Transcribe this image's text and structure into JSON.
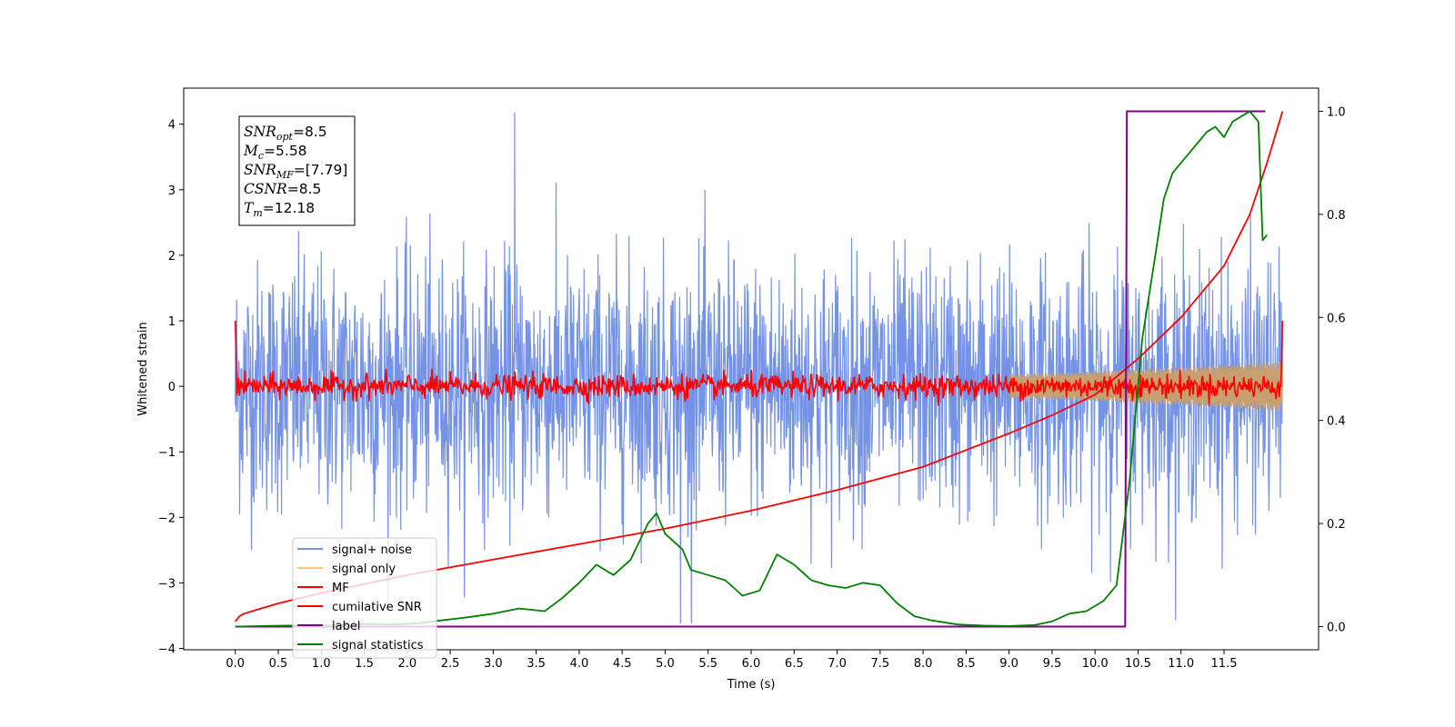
{
  "chart_data": {
    "type": "line",
    "xlabel": "Time (s)",
    "ylabel": "Whitened strain",
    "y2label": "",
    "xlim": [
      -0.6,
      12.6
    ],
    "ylim": [
      -4.02,
      4.55
    ],
    "y2lim": [
      -0.045,
      1.045
    ],
    "x_ticks": [
      0.0,
      0.5,
      1.0,
      1.5,
      2.0,
      2.5,
      3.0,
      3.5,
      4.0,
      4.5,
      5.0,
      5.5,
      6.0,
      6.5,
      7.0,
      7.5,
      8.0,
      8.5,
      9.0,
      9.5,
      10.0,
      10.5,
      11.0,
      11.5
    ],
    "x_tick_labels": [
      "0.0",
      "0.5",
      "1.0",
      "1.5",
      "2.0",
      "2.5",
      "3.0",
      "3.5",
      "4.0",
      "4.5",
      "5.0",
      "5.5",
      "6.0",
      "6.5",
      "7.0",
      "7.5",
      "8.0",
      "8.5",
      "9.0",
      "9.5",
      "10.0",
      "10.5",
      "11.0",
      "11.5"
    ],
    "y_ticks": [
      -4,
      -3,
      -2,
      -1,
      0,
      1,
      2,
      3,
      4
    ],
    "y_tick_labels": [
      "−4",
      "−3",
      "−2",
      "−1",
      "0",
      "1",
      "2",
      "3",
      "4"
    ],
    "y2_ticks": [
      0.0,
      0.2,
      0.4,
      0.6,
      0.8,
      1.0
    ],
    "y2_tick_labels": [
      "0.0",
      "0.2",
      "0.4",
      "0.6",
      "0.8",
      "1.0"
    ],
    "legend": {
      "location": "lower-left",
      "entries": [
        {
          "label": "signal+ noise",
          "color": "#7593e6"
        },
        {
          "label": "signal only",
          "color": "#ffc66b"
        },
        {
          "label": "MF",
          "color": "#ff0000"
        },
        {
          "label": "cumilative SNR",
          "color": "#ff0000"
        },
        {
          "label": "label",
          "color": "#800080"
        },
        {
          "label": "signal statistics",
          "color": "#008000"
        }
      ]
    },
    "info_box": [
      {
        "base": "SNR",
        "sub": "opt",
        "value": "=8.5"
      },
      {
        "base": "M",
        "sub": "c",
        "value": "=5.58"
      },
      {
        "base": "SNR",
        "sub": "MF",
        "value": "=[7.79]"
      },
      {
        "base": "CSNR",
        "sub": "",
        "value": "=8.5"
      },
      {
        "base": "T",
        "sub": "m",
        "value": "=12.18"
      }
    ],
    "series": [
      {
        "name": "signal+ noise",
        "axis": "left",
        "color": "#7593e6",
        "x_range": [
          0.0,
          12.18
        ],
        "typical_band": [
          -1.6,
          1.6
        ],
        "max_spike": 4.18,
        "min_spike": -3.62
      },
      {
        "name": "signal only",
        "axis": "left",
        "color": "#c8a070",
        "x_range": [
          0.0,
          12.18
        ],
        "envelope_start": 0.04,
        "envelope_end": 0.38,
        "visible_from": 9.0
      },
      {
        "name": "MF",
        "axis": "left",
        "color": "#ff0000",
        "x_range": [
          0.0,
          12.18
        ],
        "typical_band": [
          -0.2,
          0.2
        ],
        "start_value": 1.0,
        "end_value": 1.0
      },
      {
        "name": "cumilative SNR",
        "axis": "right",
        "color": "#ff0000",
        "x": [
          0.0,
          0.05,
          0.1,
          0.3,
          0.5,
          1.0,
          2.0,
          3.0,
          4.0,
          5.0,
          6.0,
          7.0,
          8.0,
          9.0,
          9.5,
          10.0,
          10.5,
          11.0,
          11.5,
          11.8,
          12.0,
          12.18
        ],
        "values": [
          0.01,
          0.02,
          0.025,
          0.035,
          0.045,
          0.065,
          0.1,
          0.13,
          0.16,
          0.19,
          0.225,
          0.265,
          0.31,
          0.375,
          0.41,
          0.45,
          0.52,
          0.6,
          0.7,
          0.8,
          0.9,
          1.0
        ]
      },
      {
        "name": "label",
        "axis": "right",
        "color": "#800080",
        "x": [
          0.0,
          10.35,
          10.37,
          11.98
        ],
        "values": [
          0.0,
          0.0,
          1.0,
          1.0
        ]
      },
      {
        "name": "signal statistics",
        "axis": "right",
        "color": "#008000",
        "x": [
          0.0,
          0.3,
          0.6,
          0.9,
          1.2,
          1.5,
          1.8,
          2.1,
          2.4,
          2.7,
          3.0,
          3.3,
          3.6,
          3.8,
          4.0,
          4.2,
          4.4,
          4.6,
          4.8,
          4.9,
          5.0,
          5.2,
          5.3,
          5.5,
          5.7,
          5.9,
          6.1,
          6.3,
          6.5,
          6.7,
          6.9,
          7.1,
          7.3,
          7.5,
          7.7,
          7.9,
          8.1,
          8.4,
          8.7,
          9.0,
          9.3,
          9.5,
          9.7,
          9.9,
          10.1,
          10.25,
          10.4,
          10.55,
          10.7,
          10.8,
          10.9,
          11.0,
          11.1,
          11.2,
          11.3,
          11.4,
          11.5,
          11.6,
          11.7,
          11.8,
          11.9,
          11.95,
          12.0
        ],
        "values": [
          0.0,
          0.001,
          0.002,
          0.001,
          0.003,
          0.005,
          0.004,
          0.006,
          0.012,
          0.018,
          0.025,
          0.035,
          0.03,
          0.055,
          0.085,
          0.12,
          0.1,
          0.13,
          0.2,
          0.22,
          0.18,
          0.15,
          0.11,
          0.1,
          0.09,
          0.06,
          0.07,
          0.14,
          0.12,
          0.09,
          0.08,
          0.075,
          0.085,
          0.08,
          0.045,
          0.02,
          0.012,
          0.004,
          0.002,
          0.001,
          0.003,
          0.01,
          0.025,
          0.03,
          0.05,
          0.08,
          0.28,
          0.56,
          0.72,
          0.83,
          0.88,
          0.9,
          0.92,
          0.94,
          0.96,
          0.97,
          0.95,
          0.98,
          0.99,
          1.0,
          0.98,
          0.75,
          0.76
        ]
      }
    ]
  }
}
